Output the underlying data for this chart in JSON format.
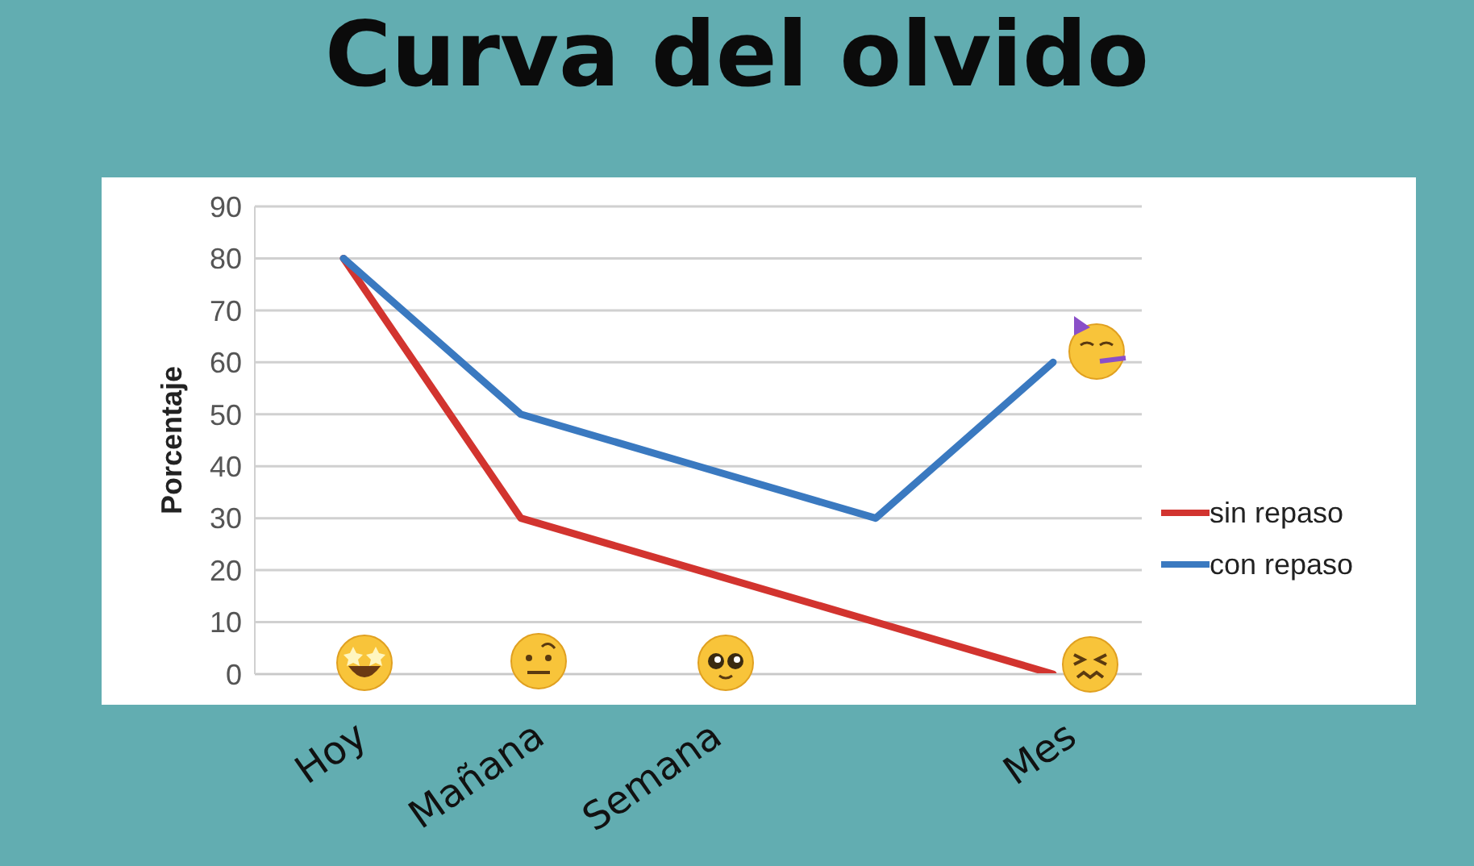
{
  "chart_data": {
    "type": "line",
    "title": "Curva del olvido",
    "ylabel": "Porcentaje",
    "categories": [
      "Hoy",
      "Mañana",
      "Semana",
      null,
      "Mes"
    ],
    "series": [
      {
        "name": "sin repaso",
        "color": "#d2342f",
        "values": [
          80,
          30,
          20,
          10,
          0
        ]
      },
      {
        "name": "con repaso",
        "color": "#3a79c0",
        "values": [
          80,
          50,
          40,
          30,
          60
        ]
      }
    ],
    "ylim": [
      0,
      90
    ],
    "yticks": [
      0,
      10,
      20,
      30,
      40,
      50,
      60,
      70,
      80,
      90
    ],
    "grid": "y",
    "legend": "right",
    "marker": "none",
    "line_style": "solid"
  }
}
